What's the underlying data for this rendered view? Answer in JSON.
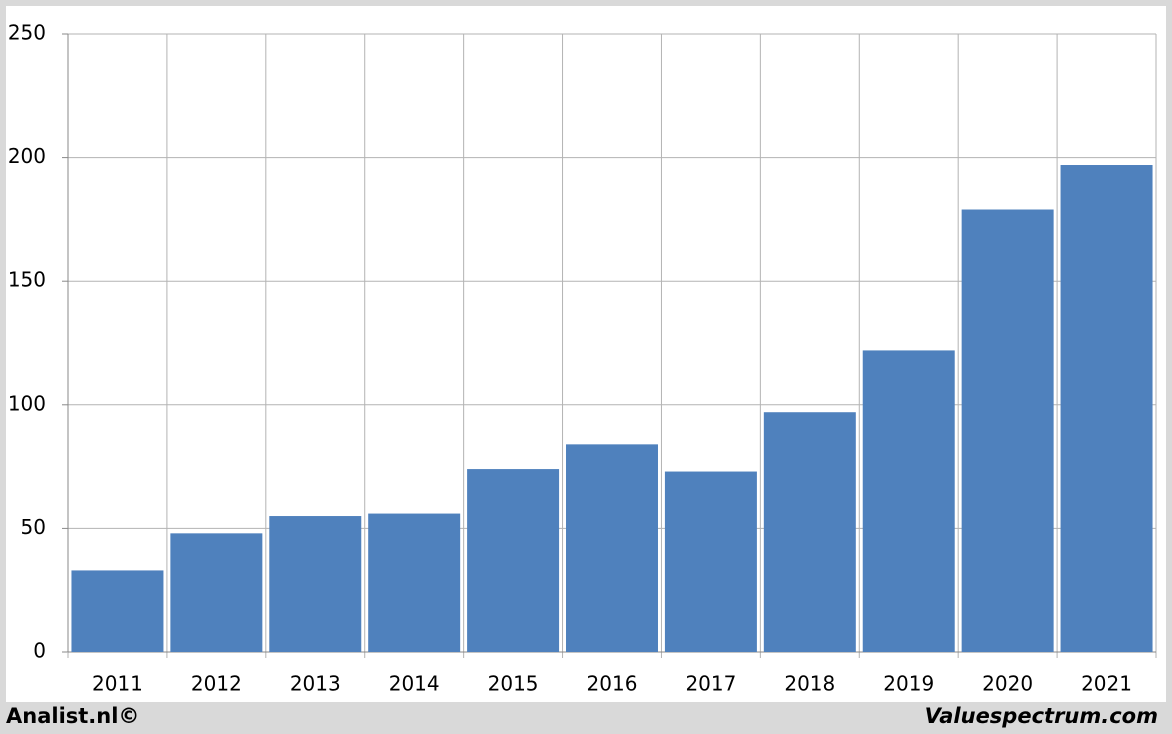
{
  "chart_data": {
    "type": "bar",
    "categories": [
      "2011",
      "2012",
      "2013",
      "2014",
      "2015",
      "2016",
      "2017",
      "2018",
      "2019",
      "2020",
      "2021"
    ],
    "values": [
      33,
      48,
      55,
      56,
      74,
      84,
      73,
      97,
      122,
      179,
      197
    ],
    "color": "#4f81bd",
    "ylim": [
      0,
      250
    ],
    "yticks": [
      0,
      50,
      100,
      150,
      200,
      250
    ],
    "grid": true,
    "footer_left": "Analist.nl©",
    "footer_right": "Valuespectrum.com"
  }
}
